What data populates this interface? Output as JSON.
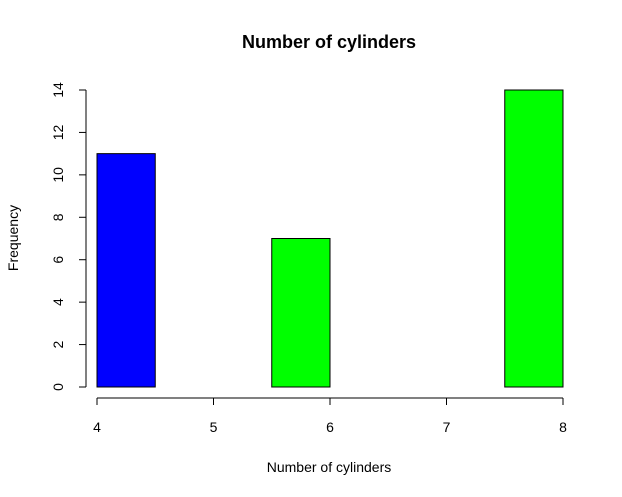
{
  "chart_data": {
    "type": "bar",
    "title": "Number of cylinders",
    "xlabel": "Number of cylinders",
    "ylabel": "Frequency",
    "xlim": [
      4,
      8
    ],
    "ylim": [
      0,
      14
    ],
    "x_ticks": [
      4,
      5,
      6,
      7,
      8
    ],
    "y_ticks": [
      0,
      2,
      4,
      6,
      8,
      10,
      12,
      14
    ],
    "bins": [
      {
        "start": 4.0,
        "end": 4.5,
        "value": 11,
        "color": "#0000FF"
      },
      {
        "start": 4.5,
        "end": 5.0,
        "value": 0,
        "color": "#00FF00"
      },
      {
        "start": 5.0,
        "end": 5.5,
        "value": 0,
        "color": "#00FF00"
      },
      {
        "start": 5.5,
        "end": 6.0,
        "value": 7,
        "color": "#00FF00"
      },
      {
        "start": 6.0,
        "end": 6.5,
        "value": 0,
        "color": "#00FF00"
      },
      {
        "start": 6.5,
        "end": 7.0,
        "value": 0,
        "color": "#00FF00"
      },
      {
        "start": 7.0,
        "end": 7.5,
        "value": 0,
        "color": "#00FF00"
      },
      {
        "start": 7.5,
        "end": 8.0,
        "value": 14,
        "color": "#00FF00"
      }
    ],
    "grid": false,
    "legend": "none"
  }
}
